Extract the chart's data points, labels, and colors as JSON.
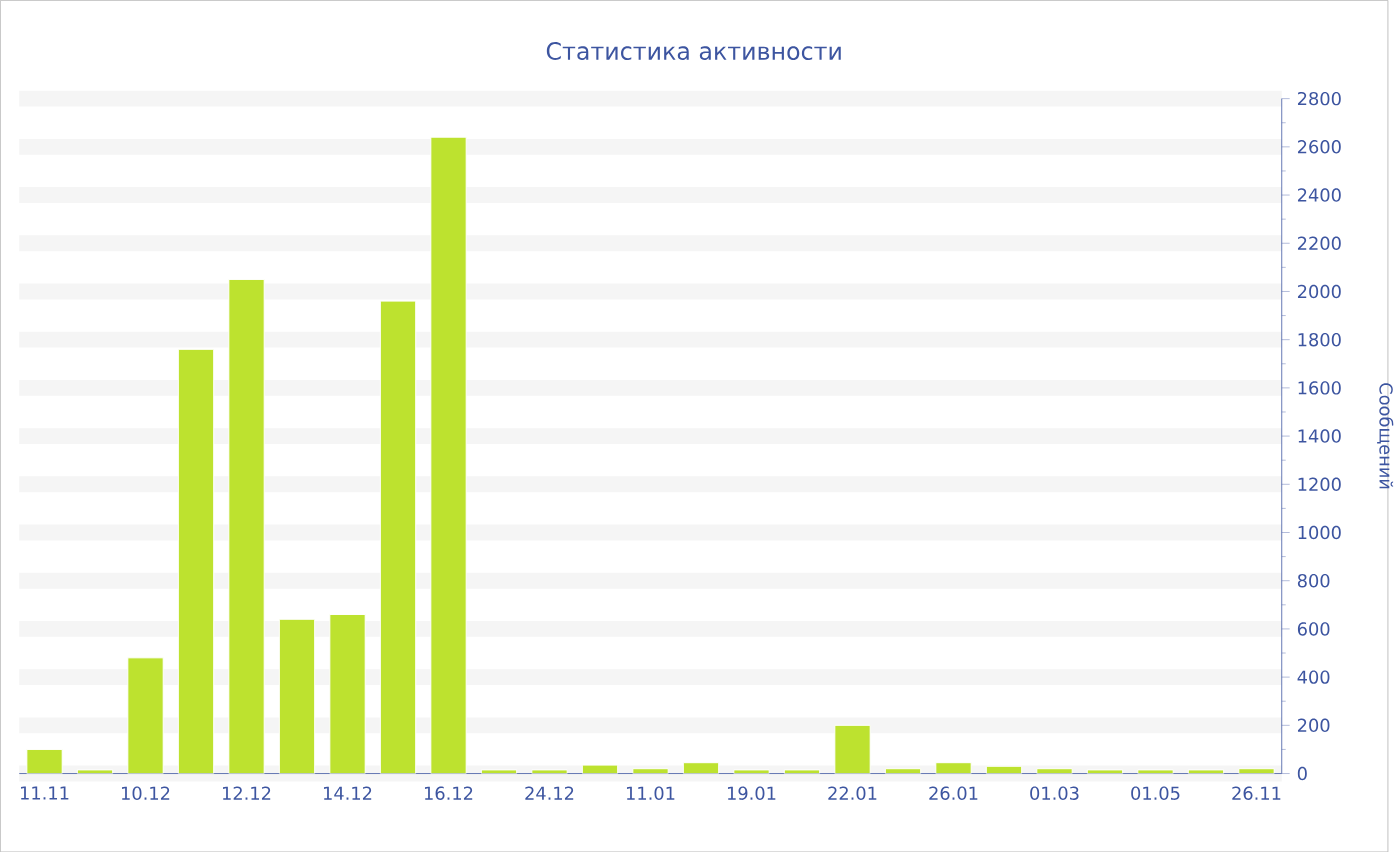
{
  "chart_data": {
    "type": "bar",
    "title": "Статистика активности",
    "ylabel": "Сообщений",
    "categories": [
      "11.11",
      null,
      "10.12",
      null,
      "12.12",
      null,
      "14.12",
      null,
      "16.12",
      null,
      "24.12",
      null,
      "11.01",
      null,
      "19.01",
      null,
      "22.01",
      null,
      "26.01",
      null,
      "01.03",
      null,
      "01.05",
      null,
      "26.11"
    ],
    "values": [
      100,
      15,
      480,
      1760,
      2050,
      640,
      660,
      1960,
      2640,
      15,
      15,
      35,
      20,
      45,
      15,
      15,
      200,
      20,
      45,
      30,
      20,
      15,
      15,
      15,
      20
    ],
    "color": "#bde22f",
    "ylim": [
      0,
      2800
    ],
    "yticks": [
      0,
      200,
      400,
      600,
      800,
      1000,
      1200,
      1400,
      1600,
      1800,
      2000,
      2200,
      2400,
      2600,
      2800
    ],
    "grid": "y"
  }
}
